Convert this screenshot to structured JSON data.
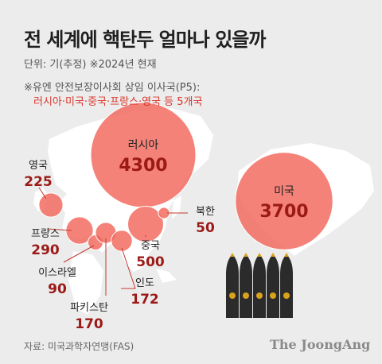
{
  "title": "전 세계에 핵탄두 얼마나 있을까",
  "unit_line": "단위: 기(추정) ※2024년 현재",
  "note_line1": "※유엔 안전보장이사회 상임 이사국(P5):",
  "note_line2": "러시아·미국·중국·프랑스·영국 등 5개국",
  "source": "자료: 미국과학자연맹(FAS)",
  "brand": "The JoongAng",
  "colors": {
    "bubble": "#f2675a",
    "value": "#9b1a17",
    "label": "#222222",
    "map": "#ffffff",
    "bombs": "#2b2b2b"
  },
  "chart_data": {
    "type": "bubble-map",
    "unit": "기",
    "points": [
      {
        "country": "러시아",
        "value": 4300
      },
      {
        "country": "미국",
        "value": 3700
      },
      {
        "country": "영국",
        "value": 225
      },
      {
        "country": "프랑스",
        "value": 290
      },
      {
        "country": "이스라엘",
        "value": 90
      },
      {
        "country": "파키스탄",
        "value": 170
      },
      {
        "country": "인도",
        "value": 172
      },
      {
        "country": "중국",
        "value": 500
      },
      {
        "country": "북한",
        "value": 50
      }
    ]
  }
}
